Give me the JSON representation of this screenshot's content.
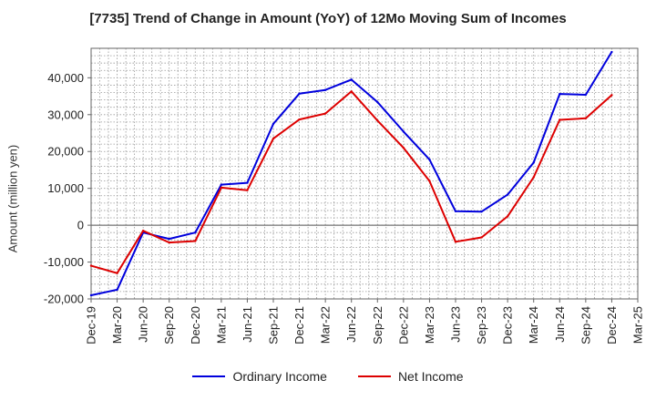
{
  "chart_data": {
    "type": "line",
    "title": "[7735]  Trend of Change in Amount (YoY) of 12Mo Moving Sum of Incomes",
    "xlabel": "",
    "ylabel": "Amount (million yen)",
    "ylim": [
      -20000,
      48000
    ],
    "yticks": [
      -20000,
      -10000,
      0,
      10000,
      20000,
      30000,
      40000
    ],
    "ytick_labels": [
      "-20,000",
      "-10,000",
      "0",
      "10,000",
      "20,000",
      "30,000",
      "40,000"
    ],
    "categories": [
      "Dec-19",
      "Mar-20",
      "Jun-20",
      "Sep-20",
      "Dec-20",
      "Mar-21",
      "Jun-21",
      "Sep-21",
      "Dec-21",
      "Mar-22",
      "Jun-22",
      "Sep-22",
      "Dec-22",
      "Mar-23",
      "Jun-23",
      "Sep-23",
      "Dec-23",
      "Mar-24",
      "Jun-24",
      "Sep-24",
      "Dec-24",
      "Mar-25"
    ],
    "grid": true,
    "legend_position": "bottom",
    "series": [
      {
        "name": "Ordinary Income",
        "color": "#0000dd",
        "values": [
          -19000,
          -17500,
          -2000,
          -3700,
          -2000,
          11000,
          11500,
          27500,
          35700,
          36700,
          39500,
          33400,
          25400,
          17800,
          3800,
          3700,
          8300,
          17000,
          35600,
          35400,
          47000,
          null
        ]
      },
      {
        "name": "Net Income",
        "color": "#dd0000",
        "values": [
          -11000,
          -13000,
          -1500,
          -4700,
          -4300,
          10200,
          9500,
          23500,
          28700,
          30300,
          36300,
          28400,
          21000,
          12000,
          -4500,
          -3300,
          2400,
          13000,
          28600,
          29000,
          35300,
          null
        ]
      }
    ]
  }
}
